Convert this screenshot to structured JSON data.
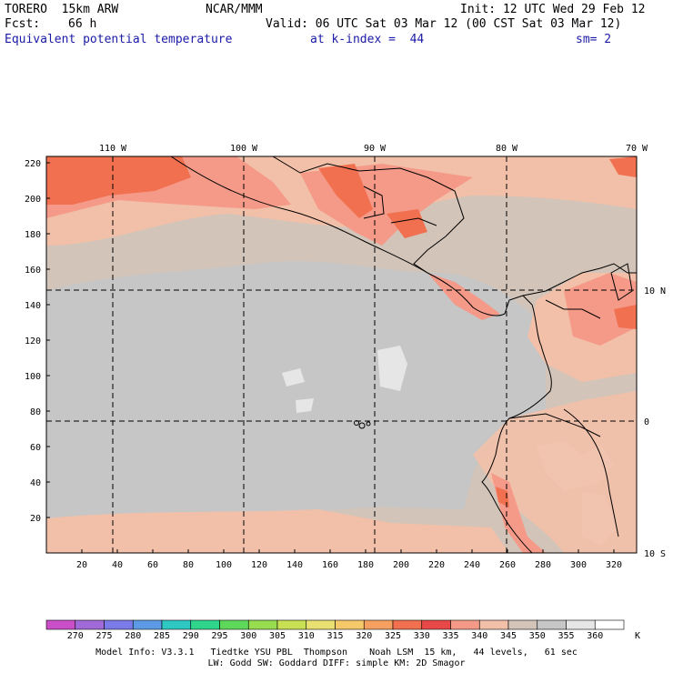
{
  "header": {
    "model": "TORERO  15km ARW",
    "org": "NCAR/MMM",
    "init": "Init: 12 UTC Wed 29 Feb 12",
    "fcst_label": "Fcst:",
    "fcst_value": "66 h",
    "valid": "Valid: 06 UTC Sat 03 Mar 12 (00 CST Sat 03 Mar 12)",
    "field": "Equivalent potential temperature",
    "level": "at k-index =  44",
    "smooth": "sm= 2"
  },
  "map": {
    "x_ticks": [
      "20",
      "40",
      "60",
      "80",
      "100",
      "120",
      "140",
      "160",
      "180",
      "200",
      "220",
      "240",
      "260",
      "280",
      "300",
      "320"
    ],
    "y_ticks": [
      "220",
      "200",
      "180",
      "160",
      "140",
      "120",
      "100",
      "80",
      "60",
      "40",
      "20"
    ],
    "lon_labels": [
      "110 W",
      "100 W",
      "90 W",
      "80 W",
      "70 W"
    ],
    "lat_labels": [
      "10 N",
      "0",
      "10 S"
    ]
  },
  "colorbar": {
    "values": [
      "270",
      "275",
      "280",
      "285",
      "290",
      "295",
      "300",
      "305",
      "310",
      "315",
      "320",
      "325",
      "330",
      "335",
      "340",
      "345",
      "350",
      "355",
      "360"
    ],
    "unit": "K",
    "colors": [
      "#c94ec8",
      "#a06ad8",
      "#7a7ae8",
      "#5c9ae6",
      "#2ec7c2",
      "#2ed58a",
      "#5ed85a",
      "#98dc50",
      "#c8e054",
      "#e8e070",
      "#f5c86a",
      "#f5a060",
      "#f07050",
      "#e84848",
      "#f59a88",
      "#f2c0a8",
      "#d2c4b8",
      "#c6c6c6",
      "#e6e6e6",
      "#ffffff"
    ]
  },
  "footer": {
    "line1": "Model Info: V3.3.1   Tiedtke YSU PBL  Thompson    Noah LSM  15 km,   44 levels,   61 sec",
    "line2": "LW: Godd SW: Goddard DIFF: simple KM: 2D Smagor"
  }
}
